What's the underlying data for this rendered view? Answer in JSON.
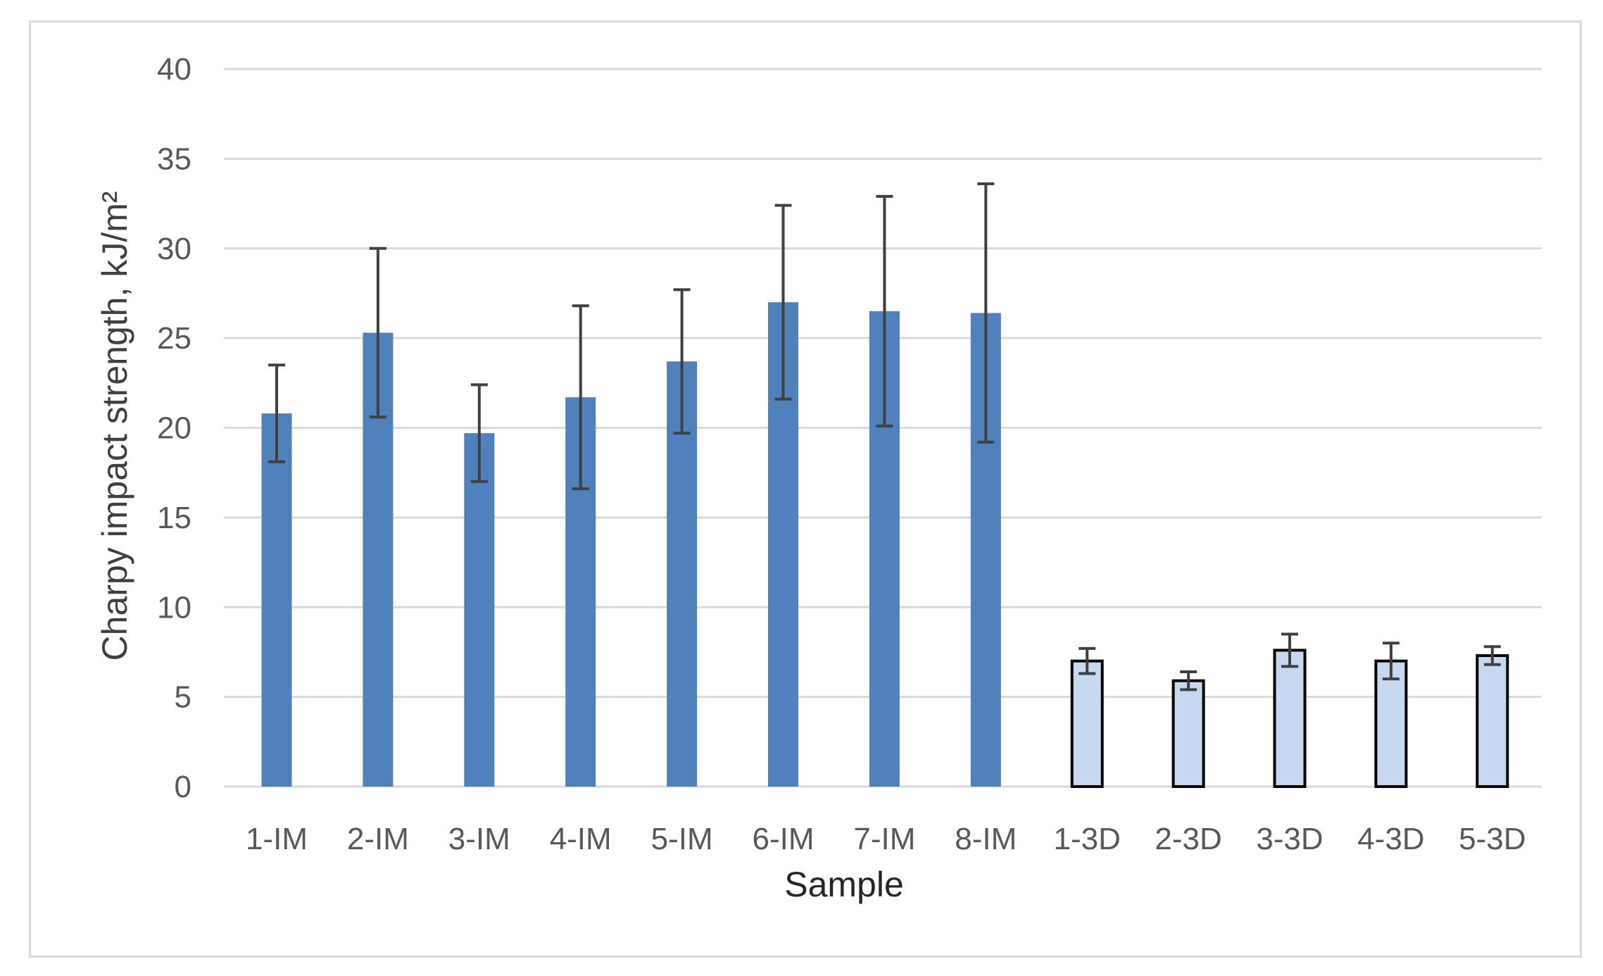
{
  "chart_data": {
    "type": "bar",
    "categories": [
      "1-IM",
      "2-IM",
      "3-IM",
      "4-IM",
      "5-IM",
      "6-IM",
      "7-IM",
      "8-IM",
      "1-3D",
      "2-3D",
      "3-3D",
      "4-3D",
      "5-3D"
    ],
    "values": [
      20.8,
      25.3,
      19.7,
      21.7,
      23.7,
      27.0,
      26.5,
      26.4,
      7.0,
      5.9,
      7.6,
      7.0,
      7.3
    ],
    "errors": [
      2.7,
      4.7,
      2.7,
      5.1,
      4.0,
      5.4,
      6.4,
      7.2,
      0.7,
      0.5,
      0.9,
      1.0,
      0.5
    ],
    "bar_colors": [
      "#4f81bd",
      "#4f81bd",
      "#4f81bd",
      "#4f81bd",
      "#4f81bd",
      "#4f81bd",
      "#4f81bd",
      "#4f81bd",
      "#c6d9f1",
      "#c6d9f1",
      "#c6d9f1",
      "#c6d9f1",
      "#c6d9f1"
    ],
    "bar_outlined": [
      false,
      false,
      false,
      false,
      false,
      false,
      false,
      false,
      true,
      true,
      true,
      true,
      true
    ],
    "outline_color": "#000000",
    "error_bar_color": "#404040",
    "gridline_color": "#d9d9d9",
    "title": "",
    "xlabel": "Sample",
    "ylabel": "Charpy impact strength, kJ/m²",
    "ylim": [
      0,
      40
    ],
    "yticks": [
      "0",
      "5",
      "10",
      "15",
      "20",
      "25",
      "30",
      "35",
      "40"
    ],
    "grid": true,
    "legend": "none"
  }
}
